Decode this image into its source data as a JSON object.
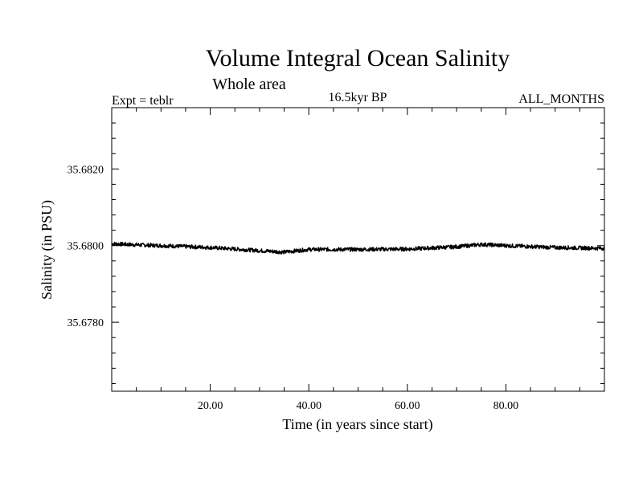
{
  "chart_data": {
    "type": "line",
    "title": "Volume Integral Ocean Salinity",
    "subtitle": "Whole area",
    "experiment": "Expt = teblr",
    "period": "16.5kyr BP",
    "months": "ALL_MONTHS",
    "xlabel": "Time (in years since start)",
    "ylabel": "Salinity (in PSU)",
    "xlim": [
      0,
      100
    ],
    "ylim": [
      35.6762,
      35.6836
    ],
    "xticks": [
      20,
      40,
      60,
      80
    ],
    "xtick_labels": [
      "20.00",
      "40.00",
      "60.00",
      "80.00"
    ],
    "yticks": [
      35.678,
      35.68,
      35.682
    ],
    "ytick_labels": [
      "35.6780",
      "35.6800",
      "35.6820"
    ],
    "series": [
      {
        "name": "Salinity",
        "trend": [
          [
            0,
            35.68005
          ],
          [
            5,
            35.68002
          ],
          [
            10,
            35.68
          ],
          [
            20,
            35.67995
          ],
          [
            30,
            35.67987
          ],
          [
            35,
            35.67983
          ],
          [
            40,
            35.6799
          ],
          [
            50,
            35.6799
          ],
          [
            60,
            35.67991
          ],
          [
            70,
            35.67997
          ],
          [
            75,
            35.68003
          ],
          [
            80,
            35.68
          ],
          [
            90,
            35.67995
          ],
          [
            100,
            35.67993
          ]
        ],
        "noise_amplitude": 5e-05,
        "samples_per_year": 12
      }
    ],
    "grid": false,
    "color": "#000000"
  }
}
